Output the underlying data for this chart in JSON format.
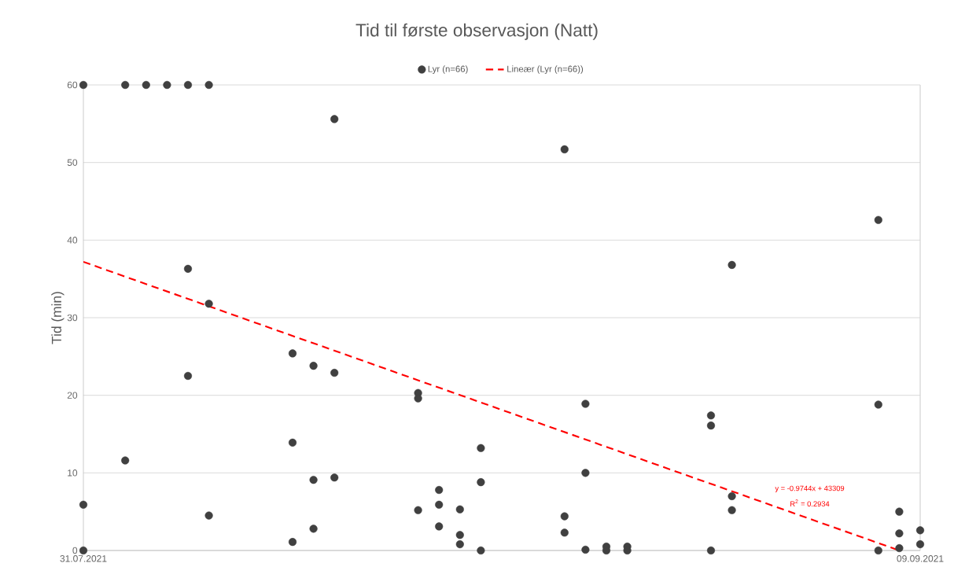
{
  "chart_data": {
    "type": "scatter",
    "title": "Tid til første observasjon (Natt)",
    "ylabel": "Tid (min)",
    "xlim": [
      "2021-07-31",
      "2021-09-09"
    ],
    "xticks": [
      {
        "value": "2021-07-31",
        "label": "31.07.2021"
      },
      {
        "value": "2021-09-09",
        "label": "09.09.2021"
      }
    ],
    "ylim": [
      0,
      60
    ],
    "yticks": [
      0,
      10,
      20,
      30,
      40,
      50,
      60
    ],
    "grid": "y",
    "legend": "top",
    "marker": "circle",
    "series": [
      {
        "name": "Lyr (n=66)",
        "color": "#404040",
        "x": [
          "2021-07-31",
          "2021-07-31",
          "2021-07-31",
          "2021-08-02",
          "2021-08-02",
          "2021-08-03",
          "2021-08-04",
          "2021-08-05",
          "2021-08-05",
          "2021-08-05",
          "2021-08-06",
          "2021-08-06",
          "2021-08-06",
          "2021-08-10",
          "2021-08-10",
          "2021-08-10",
          "2021-08-11",
          "2021-08-11",
          "2021-08-11",
          "2021-08-12",
          "2021-08-12",
          "2021-08-12",
          "2021-08-16",
          "2021-08-16",
          "2021-08-16",
          "2021-08-17",
          "2021-08-17",
          "2021-08-17",
          "2021-08-18",
          "2021-08-18",
          "2021-08-18",
          "2021-08-19",
          "2021-08-19",
          "2021-08-19",
          "2021-08-23",
          "2021-08-23",
          "2021-08-23",
          "2021-08-24",
          "2021-08-24",
          "2021-08-24",
          "2021-08-25",
          "2021-08-25",
          "2021-08-26",
          "2021-08-26",
          "2021-08-30",
          "2021-08-30",
          "2021-08-30",
          "2021-08-31",
          "2021-08-31",
          "2021-08-31",
          "2021-09-07",
          "2021-09-07",
          "2021-09-07",
          "2021-09-08",
          "2021-09-08",
          "2021-09-08",
          "2021-09-09",
          "2021-09-09"
        ],
        "values": [
          60,
          5.9,
          0,
          60,
          11.6,
          60,
          60,
          60,
          36.3,
          22.5,
          60,
          31.8,
          4.5,
          25.4,
          13.9,
          1.1,
          23.8,
          9.1,
          2.8,
          55.6,
          22.9,
          9.4,
          20.3,
          19.6,
          5.2,
          7.8,
          5.9,
          3.1,
          5.3,
          2.0,
          0.8,
          13.2,
          8.8,
          0,
          51.7,
          4.4,
          2.3,
          18.9,
          10.0,
          0.1,
          0.5,
          0,
          0.5,
          0,
          17.4,
          16.1,
          0,
          36.8,
          7.0,
          5.2,
          42.6,
          18.8,
          0,
          5.0,
          2.2,
          0.3,
          2.6,
          0.8
        ]
      },
      {
        "name": "Lineær (Lyr (n=66))",
        "color": "#ff0000",
        "type": "line",
        "line_style": "dashed",
        "marker": "none",
        "x": [
          "2021-07-31",
          "2021-09-08"
        ],
        "values": [
          37.2,
          0
        ]
      }
    ],
    "annotations": [
      "y = -0.9744x + 43309",
      "R$^{2}$ = 0.2934"
    ]
  }
}
